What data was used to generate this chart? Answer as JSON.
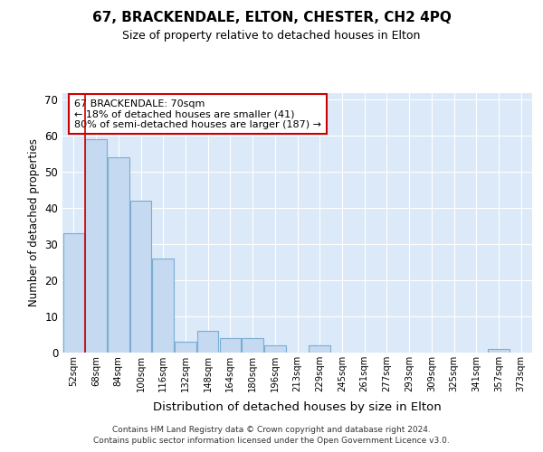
{
  "title": "67, BRACKENDALE, ELTON, CHESTER, CH2 4PQ",
  "subtitle": "Size of property relative to detached houses in Elton",
  "xlabel": "Distribution of detached houses by size in Elton",
  "ylabel": "Number of detached properties",
  "categories": [
    "52sqm",
    "68sqm",
    "84sqm",
    "100sqm",
    "116sqm",
    "132sqm",
    "148sqm",
    "164sqm",
    "180sqm",
    "196sqm",
    "213sqm",
    "229sqm",
    "245sqm",
    "261sqm",
    "277sqm",
    "293sqm",
    "309sqm",
    "325sqm",
    "341sqm",
    "357sqm",
    "373sqm"
  ],
  "values": [
    33,
    59,
    54,
    42,
    26,
    3,
    6,
    4,
    4,
    2,
    0,
    2,
    0,
    0,
    0,
    0,
    0,
    0,
    0,
    1,
    0
  ],
  "bar_color": "#c5d9f0",
  "bar_edge_color": "#7badd4",
  "fig_bg_color": "#ffffff",
  "plot_bg_color": "#dce9f8",
  "grid_color": "#ffffff",
  "vline_color": "#cc0000",
  "vline_index": 1,
  "annotation_text": "67 BRACKENDALE: 70sqm\n← 18% of detached houses are smaller (41)\n80% of semi-detached houses are larger (187) →",
  "annotation_box_edgecolor": "#cc0000",
  "ylim": [
    0,
    72
  ],
  "yticks": [
    0,
    10,
    20,
    30,
    40,
    50,
    60,
    70
  ],
  "footer_line1": "Contains HM Land Registry data © Crown copyright and database right 2024.",
  "footer_line2": "Contains public sector information licensed under the Open Government Licence v3.0."
}
